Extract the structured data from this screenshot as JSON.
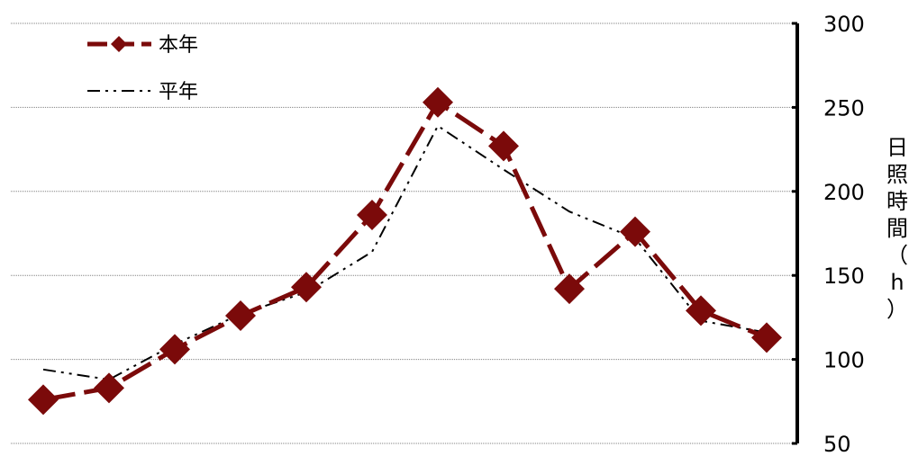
{
  "chart_data": {
    "type": "line",
    "x": [
      1,
      2,
      3,
      4,
      5,
      6,
      7,
      8,
      9,
      10,
      11,
      12
    ],
    "series": [
      {
        "name": "本年",
        "values": [
          76,
          83,
          106,
          126,
          143,
          186,
          253,
          227,
          142,
          176,
          129,
          113
        ],
        "color": "#7b0a0a",
        "style": "dashed",
        "marker": "diamond"
      },
      {
        "name": "平年",
        "values": [
          94,
          88,
          109,
          127,
          140,
          164,
          239,
          213,
          188,
          172,
          123,
          116
        ],
        "color": "#000000",
        "style": "dash-dot-dot",
        "marker": "none"
      }
    ],
    "ylabel": "日照時間（h）",
    "ylabel_chars": [
      "日",
      "照",
      "時",
      "間",
      "（",
      "h",
      "）"
    ],
    "ylim": [
      50,
      300
    ],
    "yticks": [
      50,
      100,
      150,
      200,
      250,
      300
    ],
    "y_axis_side": "right",
    "grid": "horizontal dotted",
    "legend_position": "top-left"
  }
}
